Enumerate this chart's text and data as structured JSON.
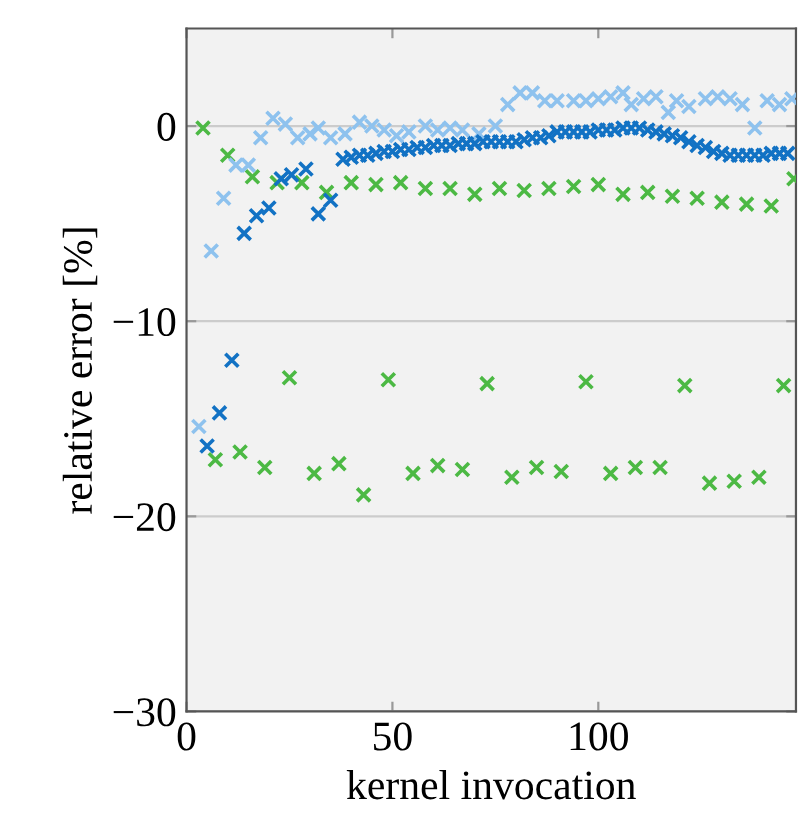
{
  "chart_data": {
    "type": "scatter",
    "xlabel": "kernel invocation",
    "ylabel": "relative error [%]",
    "xlim": [
      0,
      148
    ],
    "ylim": [
      -30,
      5
    ],
    "xticks": [
      0,
      50,
      100
    ],
    "yticks": [
      {
        "value": -30,
        "label": "−30"
      },
      {
        "value": -20,
        "label": "−20"
      },
      {
        "value": -10,
        "label": "−10"
      },
      0
    ],
    "grid": "y",
    "marker": "cross",
    "series": [
      {
        "color": "#4cb944",
        "x": [
          4,
          7,
          10,
          13,
          16,
          19,
          22,
          25,
          28,
          31,
          34,
          37,
          40,
          43,
          46,
          49,
          52,
          55,
          58,
          61,
          64,
          67,
          70,
          73,
          76,
          79,
          82,
          85,
          88,
          91,
          94,
          97,
          100,
          103,
          106,
          109,
          112,
          115,
          118,
          121,
          124,
          127,
          130,
          133,
          136,
          139,
          142,
          145,
          147.5
        ],
        "values": [
          -0.1,
          -17.1,
          -1.5,
          -16.7,
          -2.6,
          -17.5,
          -2.9,
          -12.9,
          -2.9,
          -17.8,
          -3.4,
          -17.3,
          -2.9,
          -18.9,
          -3.0,
          -13.0,
          -2.9,
          -17.8,
          -3.2,
          -17.4,
          -3.2,
          -17.6,
          -3.5,
          -13.2,
          -3.2,
          -18.0,
          -3.3,
          -17.5,
          -3.2,
          -17.7,
          -3.1,
          -13.1,
          -3.0,
          -17.8,
          -3.5,
          -17.5,
          -3.4,
          -17.5,
          -3.6,
          -13.3,
          -3.7,
          -18.3,
          -3.9,
          -18.2,
          -4.0,
          -18.0,
          -4.1,
          -13.3,
          -2.7
        ]
      },
      {
        "color": "#8ec2ee",
        "x": [
          3,
          6,
          9,
          12,
          15,
          18,
          21,
          24,
          27,
          30,
          32,
          35,
          38.5,
          42,
          45,
          48,
          51,
          54,
          58,
          61,
          64,
          67,
          71,
          75,
          78,
          81,
          84,
          87,
          90,
          94,
          97,
          100,
          103,
          106,
          108,
          111,
          114,
          117,
          119,
          122,
          126,
          129,
          132,
          135,
          138,
          141,
          144,
          147
        ],
        "values": [
          -15.4,
          -6.4,
          -3.7,
          -2.0,
          -2.0,
          -0.6,
          0.4,
          0.1,
          -0.6,
          -0.4,
          -0.1,
          -0.6,
          -0.4,
          0.2,
          0.0,
          -0.2,
          -0.5,
          -0.3,
          0.0,
          -0.2,
          -0.1,
          -0.2,
          -0.4,
          0.0,
          1.1,
          1.7,
          1.7,
          1.3,
          1.3,
          1.3,
          1.3,
          1.4,
          1.5,
          1.7,
          1.1,
          1.4,
          1.5,
          0.7,
          1.3,
          1.0,
          1.4,
          1.5,
          1.4,
          1.1,
          -0.1,
          1.3,
          1.1,
          1.4
        ]
      },
      {
        "color": "#1272c4",
        "x": [
          5,
          8,
          11,
          14,
          17,
          20,
          23,
          25.5,
          29,
          32,
          35,
          38,
          40,
          42,
          44,
          46,
          48,
          50,
          52,
          54,
          56,
          58,
          60,
          62,
          64,
          66,
          68,
          70,
          72,
          74,
          76,
          78,
          80,
          82,
          84,
          86,
          88,
          90,
          92,
          94,
          96,
          98,
          100,
          102,
          104,
          106,
          108,
          110,
          112,
          114,
          116,
          118,
          120,
          122,
          124,
          126,
          128,
          130,
          132,
          134,
          136,
          138,
          140,
          142,
          144,
          146
        ],
        "values": [
          -16.4,
          -14.7,
          -12.0,
          -5.5,
          -4.6,
          -4.2,
          -2.7,
          -2.5,
          -2.2,
          -4.5,
          -3.8,
          -1.7,
          -1.6,
          -1.5,
          -1.5,
          -1.4,
          -1.3,
          -1.3,
          -1.2,
          -1.2,
          -1.1,
          -1.1,
          -1.0,
          -1.0,
          -1.0,
          -0.9,
          -0.9,
          -0.9,
          -0.8,
          -0.8,
          -0.8,
          -0.8,
          -0.8,
          -0.7,
          -0.6,
          -0.6,
          -0.5,
          -0.3,
          -0.3,
          -0.3,
          -0.3,
          -0.3,
          -0.2,
          -0.2,
          -0.2,
          -0.1,
          -0.1,
          -0.1,
          -0.2,
          -0.3,
          -0.4,
          -0.5,
          -0.6,
          -0.8,
          -1.0,
          -1.1,
          -1.3,
          -1.4,
          -1.5,
          -1.5,
          -1.5,
          -1.5,
          -1.5,
          -1.4,
          -1.4,
          -1.4
        ]
      }
    ]
  }
}
